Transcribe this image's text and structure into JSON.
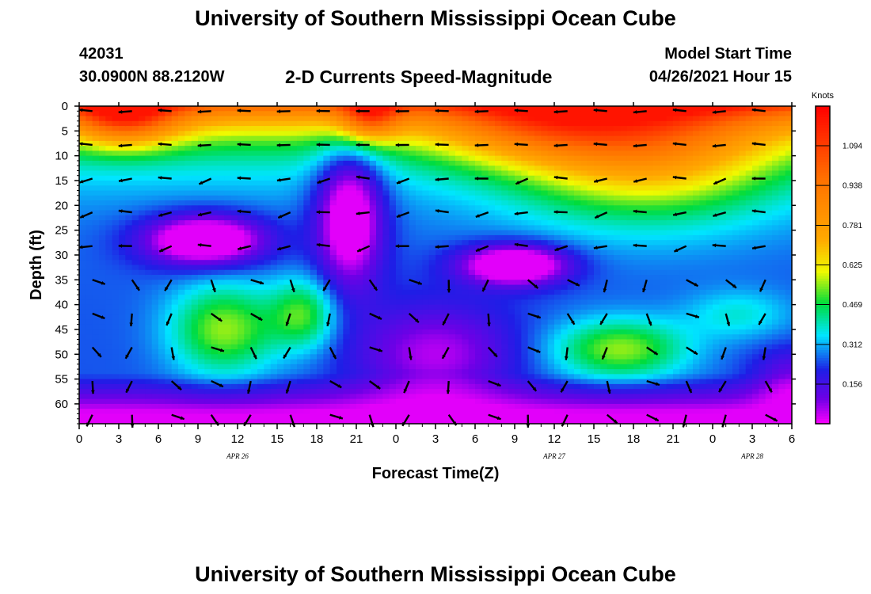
{
  "page": {
    "title_top": "University of Southern Mississippi Ocean Cube",
    "title_bottom": "University of Southern Mississippi Ocean Cube",
    "station_id": "42031",
    "station_coords": "30.0900N  88.2120W",
    "plot_title": "2-D Currents Speed-Magnitude",
    "model_start_label": "Model Start Time",
    "model_start_value": "04/26/2021 Hour 15"
  },
  "chart_data": {
    "type": "heatmap",
    "title": "2-D Currents Speed-Magnitude",
    "xlabel": "Forecast Time(Z)",
    "ylabel": "Depth (ft)",
    "x_ticks": [
      "0",
      "3",
      "6",
      "9",
      "12",
      "15",
      "18",
      "21",
      "0",
      "3",
      "6",
      "9",
      "12",
      "15",
      "18",
      "21",
      "0",
      "3",
      "6"
    ],
    "date_labels": [
      {
        "label": "APR 26",
        "x_hour": 12
      },
      {
        "label": "APR 27",
        "x_hour": 36
      },
      {
        "label": "APR 28",
        "x_hour": 51
      }
    ],
    "xlim_hours": [
      0,
      54
    ],
    "y_ticks": [
      0,
      5,
      10,
      15,
      20,
      25,
      30,
      35,
      40,
      45,
      50,
      55,
      60
    ],
    "ylim": [
      0,
      64
    ],
    "colorbar": {
      "label": "Knots",
      "ticks": [
        1.094,
        0.938,
        0.781,
        0.625,
        0.469,
        0.312,
        0.156
      ],
      "vmin": 0.0,
      "vmax": 1.25
    },
    "vector_arrows": true,
    "grid": false
  }
}
